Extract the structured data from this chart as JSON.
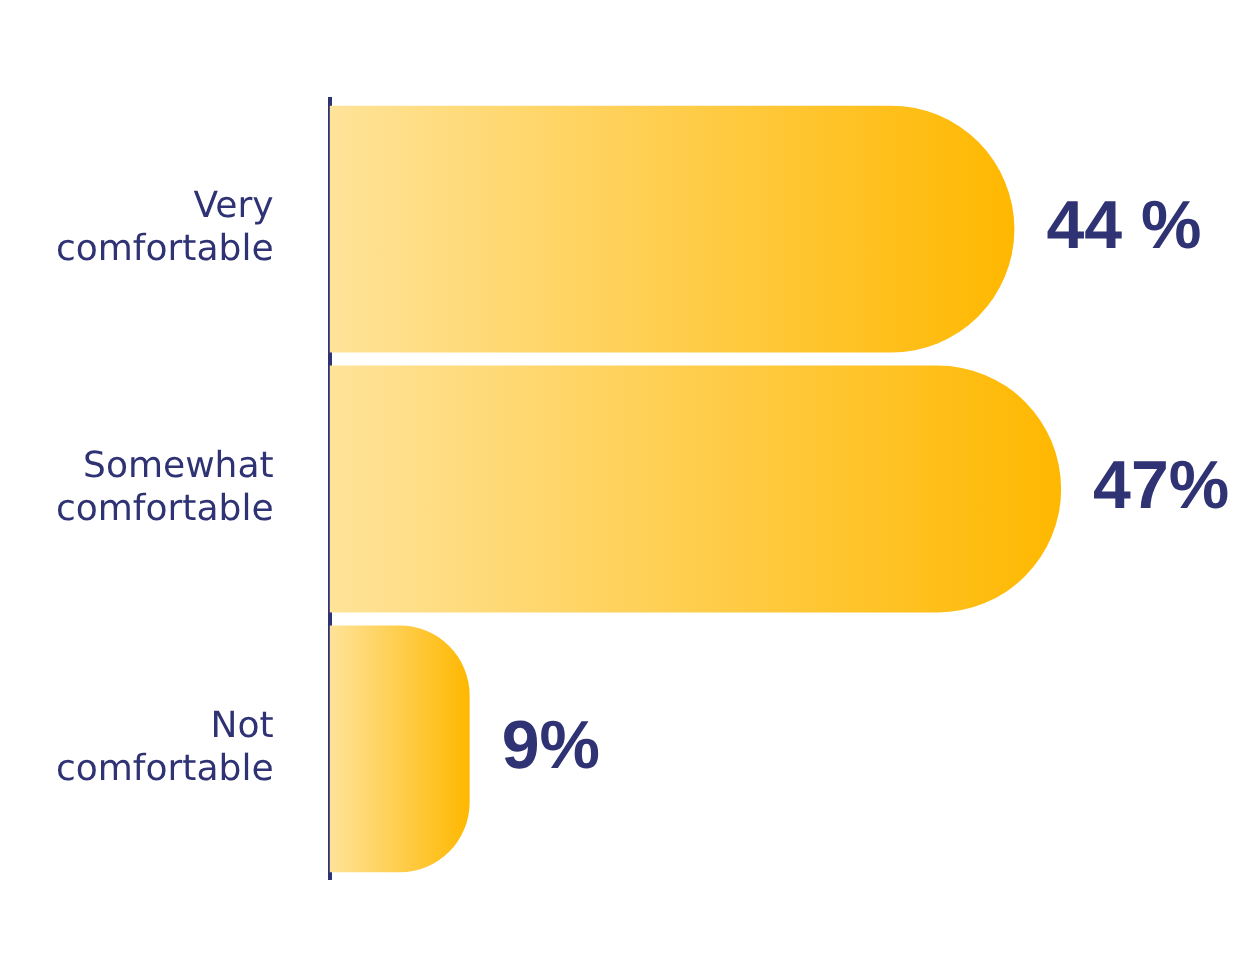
{
  "chart_data": {
    "type": "bar",
    "orientation": "horizontal",
    "categories": [
      "Very comfortable",
      "Somewhat comfortable",
      "Not comfortable"
    ],
    "values": [
      44,
      47,
      9
    ],
    "color": "#ffb800",
    "value_labels": [
      "44 %",
      "47%",
      "9%"
    ],
    "grid": false,
    "legend": false
  }
}
